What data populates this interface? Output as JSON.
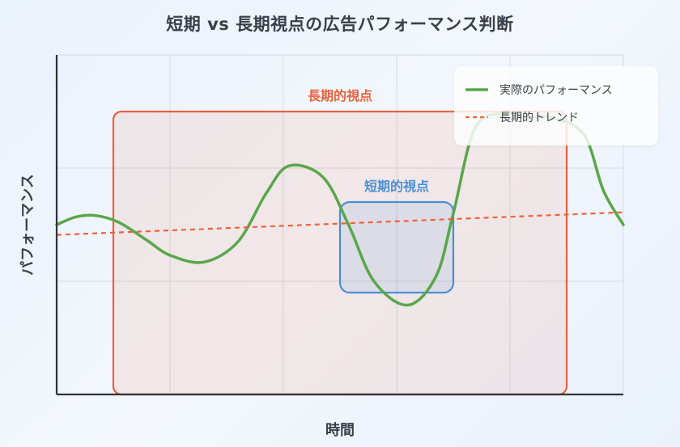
{
  "chart_data": {
    "type": "line",
    "title": "短期 vs 長期視点の広告パフォーマンス判断",
    "xlabel": "時間",
    "ylabel": "パフォーマンス",
    "xlim": [
      0,
      10
    ],
    "ylim": [
      0,
      3
    ],
    "grid": true,
    "legend_position": "top-right",
    "series": [
      {
        "name": "実際のパフォーマンス",
        "style": "solid",
        "color": "#5aa64a",
        "x": [
          0,
          0.35,
          0.7,
          1.1,
          1.6,
          2.0,
          2.6,
          3.2,
          3.7,
          4.1,
          4.7,
          5.15,
          5.6,
          6.2,
          6.7,
          7.0,
          7.4,
          8.0,
          8.3,
          8.7,
          9.3,
          9.65,
          10.0
        ],
        "values": [
          1.5,
          1.57,
          1.58,
          1.52,
          1.36,
          1.23,
          1.17,
          1.35,
          1.78,
          2.02,
          1.92,
          1.5,
          1.0,
          0.79,
          1.05,
          1.6,
          2.37,
          2.48,
          2.44,
          2.45,
          2.3,
          1.8,
          1.5
        ]
      },
      {
        "name": "長期的トレンド",
        "style": "dashed",
        "color": "#f0613a",
        "x": [
          0,
          10
        ],
        "values": [
          1.41,
          1.61
        ]
      }
    ],
    "annotations": [
      {
        "label": "長期的視点",
        "color": "#e8623f",
        "x_range": [
          1.0,
          9.0
        ],
        "y_range": [
          0,
          2.5
        ]
      },
      {
        "label": "短期的視点",
        "color": "#4a8fd4",
        "x_range": [
          5.0,
          7.0
        ],
        "y_range": [
          0.9,
          1.7
        ]
      }
    ]
  }
}
